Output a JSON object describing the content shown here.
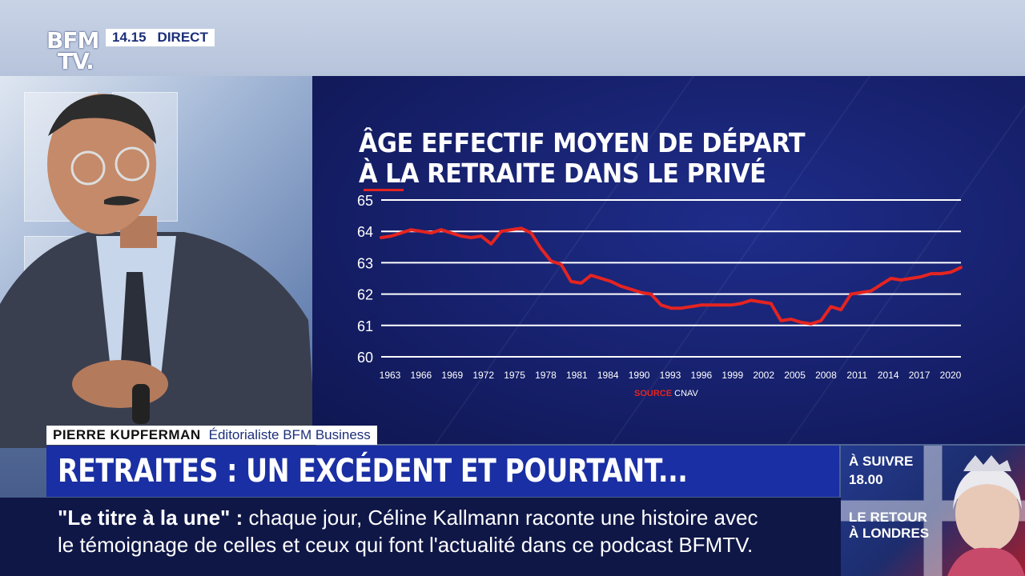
{
  "broadcast": {
    "channel_logo_line1": "BFM",
    "channel_logo_line2": "TV.",
    "time": "14.15",
    "live_label": "DIRECT"
  },
  "lower_third": {
    "name": "PIERRE KUPFERMAN",
    "role": "Éditorialiste BFM Business",
    "headline": "RETRAITES : UN EXCÉDENT ET POURTANT..."
  },
  "ticker": {
    "tag": "\"Le titre à la une\"",
    "separator": " :",
    "line1_text": " chaque jour, Céline Kallmann raconte une histoire avec",
    "line2_text": "le témoignage de celles et ceux qui font l'actualité dans ce podcast BFMTV."
  },
  "up_next": {
    "label": "À SUIVRE",
    "time": "18.00",
    "title": "LE RETOUR À LONDRES"
  },
  "chart_source": {
    "label": "SOURCE",
    "value": "CNAV"
  },
  "colors": {
    "line": "#e52421",
    "grid": "#ffffff",
    "chart_bg": "#16206b",
    "headline_bg": "#1a2fa3",
    "ticker_bg": "#0f1747"
  },
  "chart_data": {
    "type": "line",
    "title_line1": "ÂGE EFFECTIF MOYEN DE DÉPART",
    "title_line2": "À LA RETRAITE DANS LE PRIVÉ",
    "xlabel": "",
    "ylabel": "",
    "ylim": [
      60,
      65
    ],
    "yticks": [
      65,
      64,
      63,
      62,
      61,
      60
    ],
    "xticks": [
      "1963",
      "1966",
      "1969",
      "1972",
      "1975",
      "1978",
      "1981",
      "1984",
      "1990",
      "1993",
      "1996",
      "1999",
      "2002",
      "2005",
      "2008",
      "2011",
      "2014",
      "2017",
      "2020"
    ],
    "grid": true,
    "series": [
      {
        "name": "",
        "x": [
          1963,
          1964,
          1965,
          1966,
          1967,
          1968,
          1969,
          1970,
          1971,
          1972,
          1973,
          1974,
          1975,
          1976,
          1977,
          1978,
          1979,
          1980,
          1981,
          1982,
          1983,
          1984,
          1985,
          1986,
          1987,
          1988,
          1989,
          1990,
          1991,
          1992,
          1993,
          1994,
          1995,
          1996,
          1997,
          1998,
          1999,
          2000,
          2001,
          2002,
          2003,
          2004,
          2005,
          2006,
          2007,
          2008,
          2009,
          2010,
          2011,
          2012,
          2013,
          2014,
          2015,
          2016,
          2017,
          2018,
          2019,
          2020,
          2021
        ],
        "values": [
          63.8,
          63.85,
          63.95,
          64.05,
          64.0,
          63.95,
          64.05,
          63.95,
          63.85,
          63.8,
          63.85,
          63.6,
          64.0,
          64.05,
          64.1,
          63.95,
          63.45,
          63.05,
          62.95,
          62.4,
          62.35,
          62.6,
          62.5,
          62.4,
          62.25,
          62.15,
          62.05,
          62.0,
          61.65,
          61.55,
          61.55,
          61.6,
          61.65,
          61.65,
          61.65,
          61.65,
          61.7,
          61.8,
          61.75,
          61.7,
          61.15,
          61.2,
          61.1,
          61.05,
          61.15,
          61.6,
          61.5,
          62.0,
          62.05,
          62.1,
          62.3,
          62.5,
          62.45,
          62.5,
          62.55,
          62.65,
          62.65,
          62.7,
          62.85
        ]
      }
    ]
  }
}
